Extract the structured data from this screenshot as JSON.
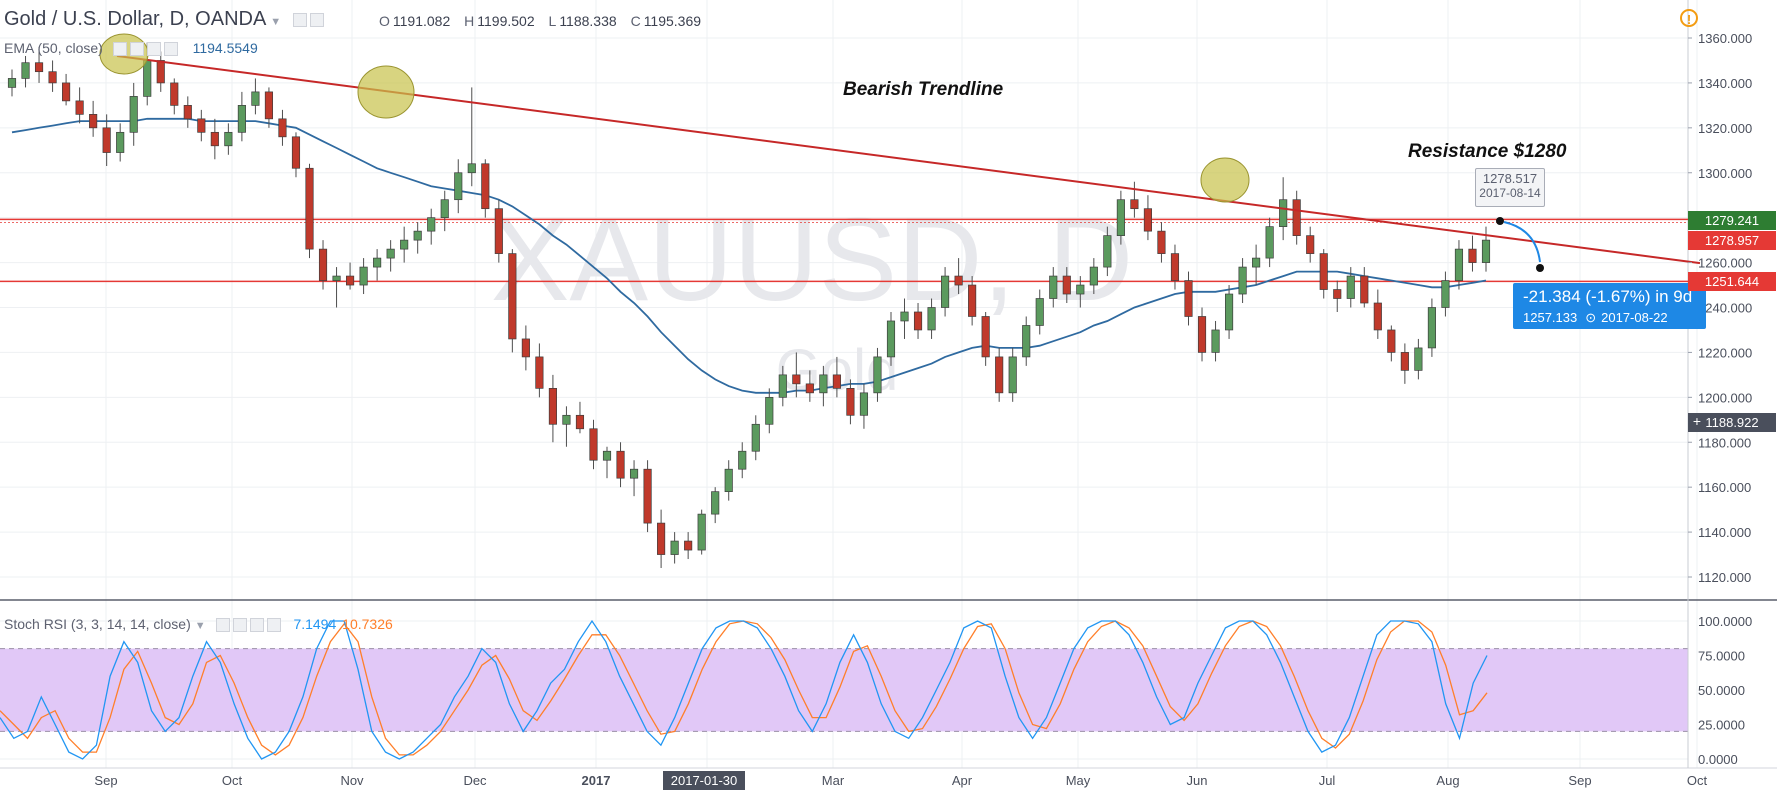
{
  "header": {
    "symbol": "Gold / U.S. Dollar, D, OANDA",
    "open_label": "O",
    "open": "1191.082",
    "high_label": "H",
    "high": "1199.502",
    "low_label": "L",
    "low": "1188.338",
    "close_label": "C",
    "close": "1195.369"
  },
  "watermark": {
    "ticker": "XAUUSD, D",
    "name": "Gold"
  },
  "ema_legend": {
    "label": "EMA (50, close)",
    "value": "1194.5549"
  },
  "stoch_legend": {
    "label": "Stoch RSI (3, 3, 14, 14, close)",
    "k": "7.1494",
    "d": "10.7326"
  },
  "annotations": {
    "trend_label": "Bearish Trendline",
    "resistance_label": "Resistance $1280"
  },
  "tooltip": {
    "price": "1278.517",
    "date": "2017-08-14"
  },
  "measure": {
    "change": "-21.384 (-1.67%) in 9d",
    "price": "1257.133",
    "date": "2017-08-22"
  },
  "price_tags": {
    "resistance": "1279.241",
    "trendline": "1278.957",
    "support": "1251.644",
    "last": "1188.922"
  },
  "crosshair_date": "2017-01-30",
  "colors": {
    "up": "#5b9a5e",
    "down": "#c0392b",
    "ema": "#2f6aa0",
    "trendline": "#c62828",
    "hline": "#e53935",
    "stoch_k": "#2196f3",
    "stoch_d": "#ff7f2a",
    "stoch_band": "#e1c8f7",
    "highlight": "#c8c24a"
  },
  "chart_data": {
    "type": "candlestick",
    "series": [
      {
        "name": "Gold / U.S. Dollar",
        "ohlc": [
          [
            1338,
            1346,
            1334,
            1342
          ],
          [
            1342,
            1352,
            1338,
            1349
          ],
          [
            1349,
            1356,
            1340,
            1345
          ],
          [
            1345,
            1350,
            1336,
            1340
          ],
          [
            1340,
            1344,
            1330,
            1332
          ],
          [
            1332,
            1338,
            1322,
            1326
          ],
          [
            1326,
            1332,
            1316,
            1320
          ],
          [
            1320,
            1326,
            1303,
            1309
          ],
          [
            1309,
            1322,
            1305,
            1318
          ],
          [
            1318,
            1340,
            1312,
            1334
          ],
          [
            1334,
            1358,
            1330,
            1350
          ],
          [
            1350,
            1354,
            1336,
            1340
          ],
          [
            1340,
            1342,
            1326,
            1330
          ],
          [
            1330,
            1334,
            1320,
            1324
          ],
          [
            1324,
            1328,
            1314,
            1318
          ],
          [
            1318,
            1324,
            1306,
            1312
          ],
          [
            1312,
            1322,
            1308,
            1318
          ],
          [
            1318,
            1336,
            1314,
            1330
          ],
          [
            1330,
            1342,
            1326,
            1336
          ],
          [
            1336,
            1338,
            1320,
            1324
          ],
          [
            1324,
            1328,
            1312,
            1316
          ],
          [
            1316,
            1318,
            1298,
            1302
          ],
          [
            1302,
            1304,
            1262,
            1266
          ],
          [
            1266,
            1270,
            1248,
            1252
          ],
          [
            1252,
            1258,
            1240,
            1254
          ],
          [
            1254,
            1260,
            1248,
            1250
          ],
          [
            1250,
            1262,
            1246,
            1258
          ],
          [
            1258,
            1266,
            1252,
            1262
          ],
          [
            1262,
            1270,
            1256,
            1266
          ],
          [
            1266,
            1276,
            1260,
            1270
          ],
          [
            1270,
            1278,
            1264,
            1274
          ],
          [
            1274,
            1284,
            1268,
            1280
          ],
          [
            1280,
            1292,
            1274,
            1288
          ],
          [
            1288,
            1306,
            1282,
            1300
          ],
          [
            1300,
            1338,
            1294,
            1304
          ],
          [
            1304,
            1306,
            1280,
            1284
          ],
          [
            1284,
            1288,
            1260,
            1264
          ],
          [
            1264,
            1266,
            1220,
            1226
          ],
          [
            1226,
            1232,
            1212,
            1218
          ],
          [
            1218,
            1224,
            1200,
            1204
          ],
          [
            1204,
            1210,
            1180,
            1188
          ],
          [
            1188,
            1196,
            1178,
            1192
          ],
          [
            1192,
            1198,
            1184,
            1186
          ],
          [
            1186,
            1190,
            1168,
            1172
          ],
          [
            1172,
            1178,
            1164,
            1176
          ],
          [
            1176,
            1180,
            1160,
            1164
          ],
          [
            1164,
            1172,
            1156,
            1168
          ],
          [
            1168,
            1172,
            1140,
            1144
          ],
          [
            1144,
            1150,
            1124,
            1130
          ],
          [
            1130,
            1140,
            1126,
            1136
          ],
          [
            1136,
            1140,
            1128,
            1132
          ],
          [
            1132,
            1150,
            1130,
            1148
          ],
          [
            1148,
            1160,
            1144,
            1158
          ],
          [
            1158,
            1172,
            1154,
            1168
          ],
          [
            1168,
            1180,
            1164,
            1176
          ],
          [
            1176,
            1192,
            1172,
            1188
          ],
          [
            1188,
            1204,
            1184,
            1200
          ],
          [
            1200,
            1214,
            1196,
            1210
          ],
          [
            1210,
            1220,
            1200,
            1206
          ],
          [
            1206,
            1212,
            1198,
            1202
          ],
          [
            1202,
            1214,
            1196,
            1210
          ],
          [
            1210,
            1218,
            1200,
            1204
          ],
          [
            1204,
            1208,
            1188,
            1192
          ],
          [
            1192,
            1206,
            1186,
            1202
          ],
          [
            1202,
            1222,
            1198,
            1218
          ],
          [
            1218,
            1238,
            1214,
            1234
          ],
          [
            1234,
            1244,
            1226,
            1238
          ],
          [
            1238,
            1242,
            1226,
            1230
          ],
          [
            1230,
            1244,
            1226,
            1240
          ],
          [
            1240,
            1258,
            1236,
            1254
          ],
          [
            1254,
            1262,
            1246,
            1250
          ],
          [
            1250,
            1254,
            1232,
            1236
          ],
          [
            1236,
            1238,
            1214,
            1218
          ],
          [
            1218,
            1222,
            1198,
            1202
          ],
          [
            1202,
            1222,
            1198,
            1218
          ],
          [
            1218,
            1236,
            1214,
            1232
          ],
          [
            1232,
            1248,
            1228,
            1244
          ],
          [
            1244,
            1258,
            1240,
            1254
          ],
          [
            1254,
            1258,
            1242,
            1246
          ],
          [
            1246,
            1254,
            1240,
            1250
          ],
          [
            1250,
            1262,
            1246,
            1258
          ],
          [
            1258,
            1276,
            1254,
            1272
          ],
          [
            1272,
            1292,
            1268,
            1288
          ],
          [
            1288,
            1296,
            1280,
            1284
          ],
          [
            1284,
            1290,
            1270,
            1274
          ],
          [
            1274,
            1278,
            1260,
            1264
          ],
          [
            1264,
            1268,
            1248,
            1252
          ],
          [
            1252,
            1256,
            1232,
            1236
          ],
          [
            1236,
            1240,
            1216,
            1220
          ],
          [
            1220,
            1234,
            1216,
            1230
          ],
          [
            1230,
            1250,
            1226,
            1246
          ],
          [
            1246,
            1262,
            1242,
            1258
          ],
          [
            1258,
            1268,
            1250,
            1262
          ],
          [
            1262,
            1280,
            1258,
            1276
          ],
          [
            1276,
            1298,
            1270,
            1288
          ],
          [
            1288,
            1292,
            1268,
            1272
          ],
          [
            1272,
            1276,
            1260,
            1264
          ],
          [
            1264,
            1266,
            1244,
            1248
          ],
          [
            1248,
            1252,
            1238,
            1244
          ],
          [
            1244,
            1258,
            1240,
            1254
          ],
          [
            1254,
            1258,
            1240,
            1242
          ],
          [
            1242,
            1248,
            1226,
            1230
          ],
          [
            1230,
            1232,
            1216,
            1220
          ],
          [
            1220,
            1224,
            1206,
            1212
          ],
          [
            1212,
            1226,
            1208,
            1222
          ],
          [
            1222,
            1244,
            1218,
            1240
          ],
          [
            1240,
            1256,
            1236,
            1252
          ],
          [
            1252,
            1270,
            1248,
            1266
          ],
          [
            1266,
            1272,
            1256,
            1260
          ],
          [
            1260,
            1276,
            1256,
            1270
          ]
        ]
      },
      {
        "name": "EMA (50, close)",
        "values": [
          1318,
          1319,
          1320,
          1321,
          1322,
          1323,
          1323,
          1323,
          1323,
          1323,
          1324,
          1324,
          1324,
          1324,
          1323,
          1323,
          1323,
          1323,
          1323,
          1322,
          1321,
          1320,
          1317,
          1314,
          1311,
          1308,
          1305,
          1302,
          1300,
          1298,
          1296,
          1294,
          1293,
          1292,
          1291,
          1290,
          1288,
          1285,
          1281,
          1277,
          1272,
          1268,
          1263,
          1258,
          1253,
          1247,
          1242,
          1236,
          1229,
          1223,
          1217,
          1212,
          1208,
          1205,
          1203,
          1202,
          1202,
          1202,
          1203,
          1203,
          1204,
          1205,
          1206,
          1206,
          1207,
          1209,
          1211,
          1213,
          1215,
          1218,
          1220,
          1222,
          1223,
          1222,
          1222,
          1222,
          1223,
          1225,
          1227,
          1229,
          1232,
          1234,
          1237,
          1240,
          1242,
          1244,
          1246,
          1247,
          1247,
          1247,
          1248,
          1249,
          1250,
          1252,
          1254,
          1256,
          1256,
          1256,
          1256,
          1255,
          1254,
          1253,
          1252,
          1251,
          1250,
          1249,
          1249,
          1250,
          1251,
          1252
        ]
      }
    ],
    "trendline": {
      "x": [
        0,
        110
      ],
      "y": [
        1352,
        1274
      ]
    },
    "hlines": [
      1279.241,
      1251.644
    ],
    "stoch_rsi": {
      "k": [
        30,
        15,
        20,
        45,
        25,
        5,
        0,
        10,
        60,
        85,
        70,
        35,
        20,
        30,
        60,
        85,
        70,
        40,
        15,
        0,
        5,
        20,
        45,
        80,
        100,
        100,
        65,
        20,
        5,
        0,
        5,
        15,
        25,
        45,
        60,
        80,
        70,
        40,
        20,
        35,
        55,
        65,
        85,
        100,
        85,
        60,
        40,
        20,
        10,
        30,
        55,
        80,
        95,
        100,
        100,
        95,
        80,
        60,
        35,
        20,
        40,
        70,
        90,
        70,
        40,
        20,
        15,
        30,
        50,
        70,
        95,
        100,
        95,
        60,
        30,
        15,
        30,
        55,
        80,
        95,
        100,
        100,
        90,
        70,
        45,
        25,
        30,
        55,
        75,
        95,
        100,
        100,
        90,
        70,
        45,
        20,
        5,
        10,
        30,
        60,
        90,
        100,
        100,
        98,
        85,
        40,
        15,
        55,
        75
      ],
      "d": [
        35,
        25,
        15,
        30,
        35,
        15,
        5,
        5,
        30,
        65,
        78,
        55,
        30,
        25,
        40,
        70,
        75,
        55,
        30,
        10,
        3,
        10,
        30,
        60,
        85,
        98,
        85,
        45,
        15,
        3,
        3,
        10,
        20,
        35,
        50,
        68,
        75,
        58,
        35,
        28,
        42,
        58,
        75,
        90,
        90,
        75,
        55,
        35,
        18,
        20,
        40,
        65,
        85,
        98,
        100,
        98,
        88,
        72,
        50,
        30,
        30,
        52,
        78,
        82,
        60,
        35,
        20,
        22,
        38,
        58,
        80,
        96,
        98,
        80,
        48,
        25,
        22,
        40,
        65,
        85,
        96,
        100,
        95,
        82,
        60,
        38,
        28,
        40,
        62,
        82,
        96,
        100,
        96,
        82,
        60,
        35,
        15,
        8,
        18,
        42,
        72,
        92,
        100,
        100,
        92,
        68,
        32,
        35,
        48
      ],
      "bands": [
        20,
        80
      ],
      "ylim": [
        0,
        100
      ]
    },
    "x_ticks": [
      "Sep",
      "Oct",
      "Nov",
      "Dec",
      "2017",
      "2017-01-30",
      "Mar",
      "Apr",
      "May",
      "Jun",
      "Jul",
      "Aug",
      "Sep",
      "Oct"
    ],
    "y_ticks": [
      "1360.000",
      "1340.000",
      "1320.000",
      "1300.000",
      "1280.000",
      "1260.000",
      "1240.000",
      "1220.000",
      "1200.000",
      "1180.000",
      "1160.000",
      "1140.000",
      "1120.000"
    ],
    "stoch_ticks": [
      "100.0000",
      "75.0000",
      "50.0000",
      "25.0000",
      "0.0000"
    ],
    "ylim": [
      1112,
      1368
    ]
  }
}
